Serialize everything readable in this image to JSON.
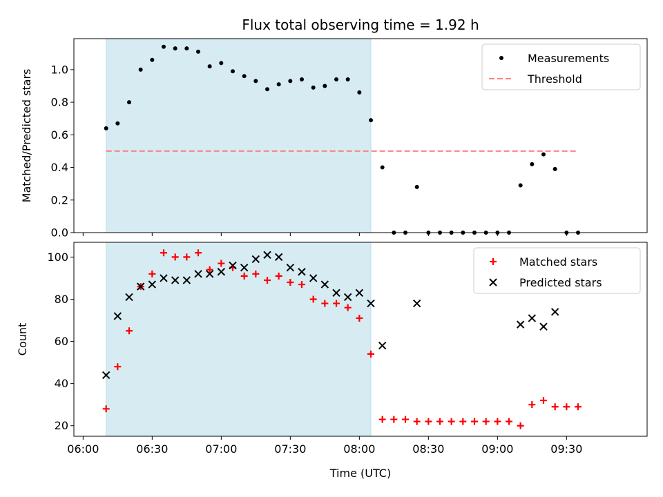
{
  "chart_data": [
    {
      "type": "scatter",
      "title": "Flux total observing time = 1.92 h",
      "xlabel": "",
      "ylabel": "Matched/Predicted stars",
      "ylim": [
        0,
        1.2
      ],
      "yticks": [
        0.0,
        0.2,
        0.4,
        0.6,
        0.8,
        1.0
      ],
      "ytick_labels": [
        "0.0",
        "0.2",
        "0.4",
        "0.6",
        "0.8",
        "1.0"
      ],
      "xlim_minutes": [
        356,
        605
      ],
      "shaded_interval": [
        "06:10",
        "08:05"
      ],
      "legend_position": "top-right",
      "series": [
        {
          "name": "Measurements",
          "marker": "dot",
          "color": "#000000",
          "x": [
            "06:10",
            "06:15",
            "06:20",
            "06:25",
            "06:30",
            "06:35",
            "06:40",
            "06:45",
            "06:50",
            "06:55",
            "07:00",
            "07:05",
            "07:10",
            "07:15",
            "07:20",
            "07:25",
            "07:30",
            "07:35",
            "07:40",
            "07:45",
            "07:50",
            "07:55",
            "08:00",
            "08:05",
            "08:10",
            "08:15",
            "08:20",
            "08:25",
            "08:30",
            "08:35",
            "08:40",
            "08:45",
            "08:50",
            "08:55",
            "09:00",
            "09:05",
            "09:10",
            "09:15",
            "09:20",
            "09:25",
            "09:30",
            "09:35"
          ],
          "values": [
            0.64,
            0.67,
            0.8,
            1.0,
            1.06,
            1.14,
            1.13,
            1.13,
            1.11,
            1.02,
            1.04,
            0.99,
            0.96,
            0.93,
            0.88,
            0.91,
            0.93,
            0.94,
            0.89,
            0.9,
            0.94,
            0.94,
            0.86,
            0.69,
            0.4,
            0.0,
            0.0,
            0.28,
            0.0,
            0.0,
            0.0,
            0.0,
            0.0,
            0.0,
            0.0,
            0.0,
            0.29,
            0.42,
            0.48,
            0.39,
            0.0,
            0.0
          ]
        },
        {
          "name": "Threshold",
          "style": "dashed",
          "color": "#ff7f7f",
          "x": [
            "06:10",
            "09:35"
          ],
          "values": [
            0.5,
            0.5
          ]
        }
      ]
    },
    {
      "type": "scatter",
      "title": "",
      "xlabel": "Time (UTC)",
      "ylabel": "Count",
      "ylim": [
        15,
        107
      ],
      "yticks": [
        20,
        40,
        60,
        80,
        100
      ],
      "ytick_labels": [
        "20",
        "40",
        "60",
        "80",
        "100"
      ],
      "xticks": [
        "06:00",
        "06:30",
        "07:00",
        "07:30",
        "08:00",
        "08:30",
        "09:00",
        "09:30"
      ],
      "xlim_minutes": [
        356,
        605
      ],
      "shaded_interval": [
        "06:10",
        "08:05"
      ],
      "legend_position": "top-right",
      "series": [
        {
          "name": "Matched stars",
          "marker": "plus",
          "color": "#ff0000",
          "x": [
            "06:10",
            "06:15",
            "06:20",
            "06:25",
            "06:30",
            "06:35",
            "06:40",
            "06:45",
            "06:50",
            "06:55",
            "07:00",
            "07:05",
            "07:10",
            "07:15",
            "07:20",
            "07:25",
            "07:30",
            "07:35",
            "07:40",
            "07:45",
            "07:50",
            "07:55",
            "08:00",
            "08:05",
            "08:10",
            "08:15",
            "08:20",
            "08:25",
            "08:30",
            "08:35",
            "08:40",
            "08:45",
            "08:50",
            "08:55",
            "09:00",
            "09:05",
            "09:10",
            "09:15",
            "09:20",
            "09:25",
            "09:30",
            "09:35"
          ],
          "values": [
            28,
            48,
            65,
            86,
            92,
            102,
            100,
            100,
            102,
            94,
            97,
            95,
            91,
            92,
            89,
            91,
            88,
            87,
            80,
            78,
            78,
            76,
            71,
            54,
            23,
            23,
            23,
            22,
            22,
            22,
            22,
            22,
            22,
            22,
            22,
            22,
            20,
            30,
            32,
            29,
            29,
            29
          ]
        },
        {
          "name": "Predicted stars",
          "marker": "x",
          "color": "#000000",
          "x": [
            "06:10",
            "06:15",
            "06:20",
            "06:25",
            "06:30",
            "06:35",
            "06:40",
            "06:45",
            "06:50",
            "06:55",
            "07:00",
            "07:05",
            "07:10",
            "07:15",
            "07:20",
            "07:25",
            "07:30",
            "07:35",
            "07:40",
            "07:45",
            "07:50",
            "07:55",
            "08:00",
            "08:05",
            "08:10",
            "08:25",
            "09:10",
            "09:15",
            "09:20",
            "09:25"
          ],
          "values": [
            44,
            72,
            81,
            86,
            87,
            90,
            89,
            89,
            92,
            92,
            93,
            96,
            95,
            99,
            101,
            100,
            95,
            93,
            90,
            87,
            83,
            81,
            83,
            78,
            58,
            78,
            68,
            71,
            67,
            74
          ]
        }
      ]
    }
  ]
}
